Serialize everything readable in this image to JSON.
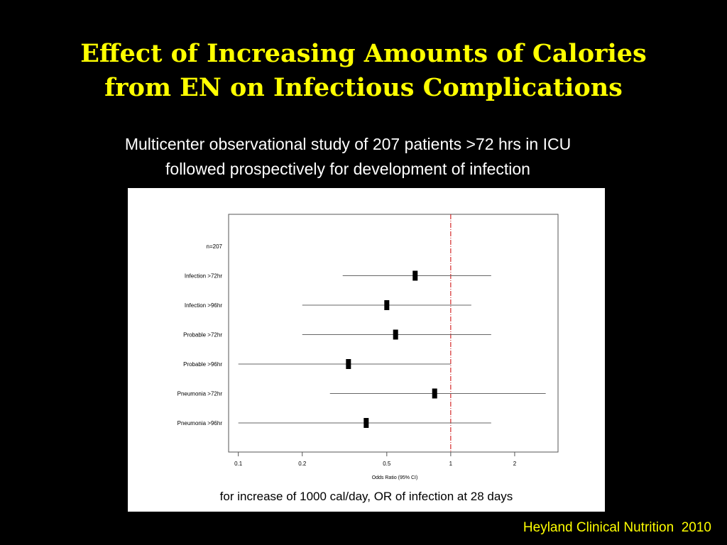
{
  "slide": {
    "title_line1": "Effect of Increasing Amounts of Calories",
    "title_line2": "from EN on Infectious Complications",
    "subtitle_line1": "Multicenter observational study of 207 patients >72 hrs in ICU",
    "subtitle_line2": "followed prospectively for development of infection",
    "caption": "for increase of 1000 cal/day, OR of infection at 28 days",
    "citation": "Heyland Clinical Nutrition  2010"
  },
  "colors": {
    "background": "#000000",
    "title": "#ffff00",
    "reference_line": "#cc0000",
    "marker": "#000000"
  },
  "chart_data": {
    "type": "forest",
    "header_label": "n=207",
    "xlabel": "Odds Ratio (95% CI)",
    "x_scale": "log",
    "xlim": [
      0.09,
      3.2
    ],
    "x_ticks": [
      0.1,
      0.2,
      0.5,
      1,
      2
    ],
    "x_tick_labels": [
      "0.1",
      "0.2",
      "0.5",
      "1",
      "2"
    ],
    "reference_line": 1,
    "rows": [
      {
        "label": "Infection >72hr",
        "or": 0.68,
        "ci_low": 0.31,
        "ci_high": 1.55
      },
      {
        "label": "Infection >96hr",
        "or": 0.5,
        "ci_low": 0.2,
        "ci_high": 1.25
      },
      {
        "label": "Probable >72hr",
        "or": 0.55,
        "ci_low": 0.2,
        "ci_high": 1.55
      },
      {
        "label": "Probable >96hr",
        "or": 0.33,
        "ci_low": 0.1,
        "ci_high": 1.0
      },
      {
        "label": "Pneumonia >72hr",
        "or": 0.84,
        "ci_low": 0.27,
        "ci_high": 2.8
      },
      {
        "label": "Pneumonia >96hr",
        "or": 0.4,
        "ci_low": 0.1,
        "ci_high": 1.55
      }
    ]
  }
}
